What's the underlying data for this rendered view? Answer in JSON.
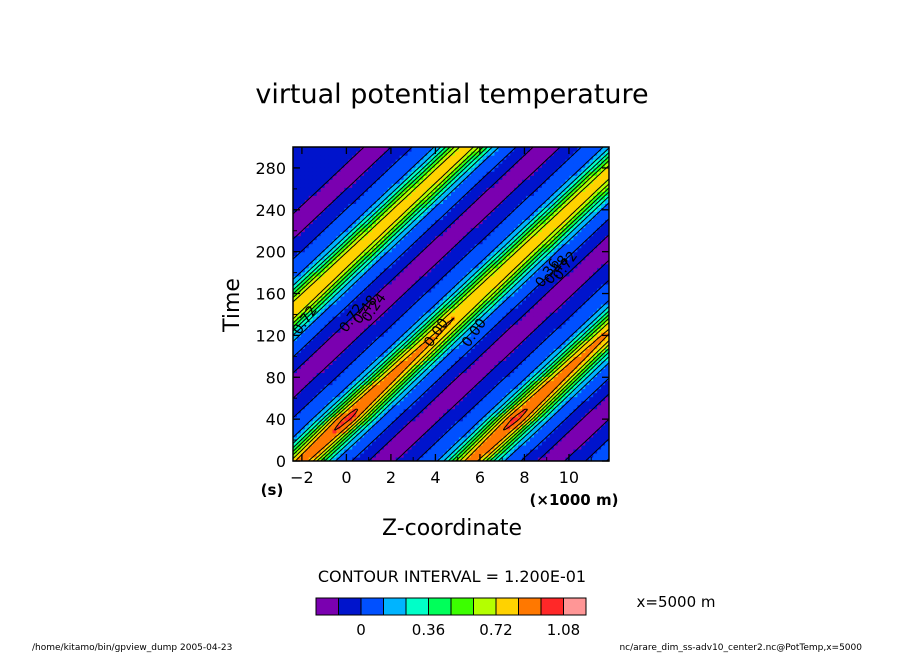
{
  "chart_data": {
    "type": "contour",
    "title": "virtual potential temperature",
    "xlabel": "Z-coordinate",
    "ylabel": "Time",
    "x_units": "(×1000 m)",
    "y_units": "(s)",
    "xlim": [
      -2.4,
      11.8
    ],
    "ylim": [
      0,
      300
    ],
    "x_ticks": [
      -2,
      0,
      2,
      4,
      6,
      8,
      10
    ],
    "x_tick_labels": [
      "−2",
      "0",
      "2",
      "4",
      "6",
      "8",
      "10"
    ],
    "y_ticks": [
      0,
      40,
      80,
      120,
      160,
      200,
      240,
      280
    ],
    "y_tick_labels": [
      "0",
      "40",
      "80",
      "120",
      "160",
      "200",
      "240",
      "280"
    ],
    "contour_interval_text": "CONTOUR INTERVAL = 1.200E-01",
    "slice_text": "x=5000 m",
    "contour_labels": [
      "0.72",
      "0.72",
      "0.48",
      "0.24",
      "0.00",
      "0.00",
      "0.36",
      "0.48",
      "0.72"
    ],
    "colorbar": {
      "colors": [
        "#7a00b0",
        "#0014cc",
        "#0050ff",
        "#00b4ff",
        "#00ffc8",
        "#00ff5a",
        "#3cff00",
        "#b4ff00",
        "#ffd200",
        "#ff7800",
        "#ff2828",
        "#ff9696"
      ],
      "tick_labels": [
        "0",
        "0.36",
        "0.72",
        "1.08"
      ]
    },
    "footer_left": "/home/kitamo/bin/gpview_dump  2005-04-23",
    "footer_right": "nc/arare_dim_ss-adv10_center2.nc@PotTemp,x=5000"
  }
}
